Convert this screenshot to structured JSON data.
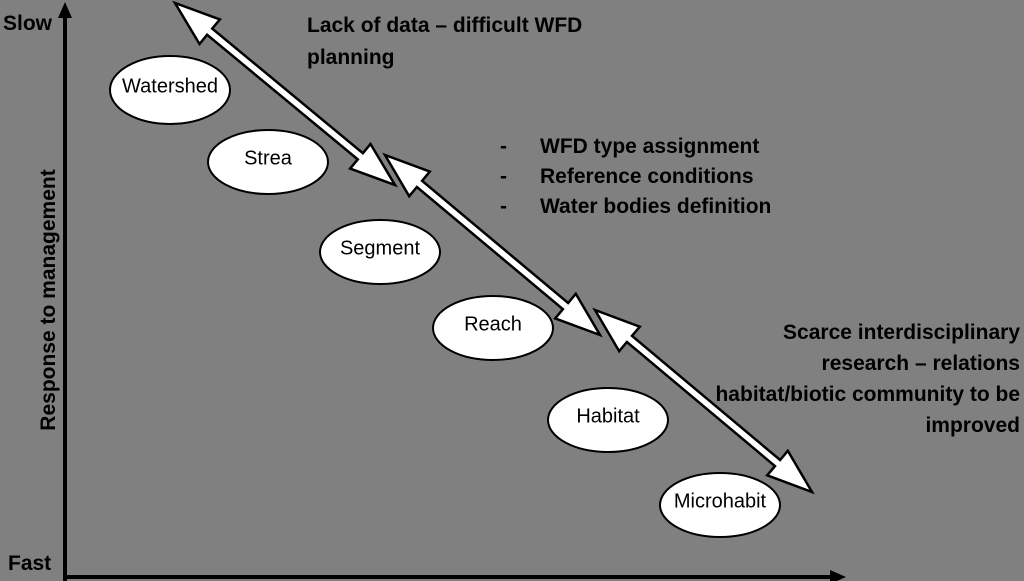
{
  "axis": {
    "top_label": "Slow",
    "bottom_label": "Fast",
    "y_label": "Response to management"
  },
  "nodes": [
    {
      "label": "Watershed"
    },
    {
      "label": "Strea"
    },
    {
      "label": "Segment"
    },
    {
      "label": "Reach"
    },
    {
      "label": "Habitat"
    },
    {
      "label": "Microhabit"
    }
  ],
  "notes": {
    "top": [
      "Lack of data – difficult WFD",
      "planning"
    ],
    "middle": [
      {
        "bullet": "-",
        "text": "WFD type assignment"
      },
      {
        "bullet": "-",
        "text": "Reference conditions"
      },
      {
        "bullet": "-",
        "text": "Water bodies definition"
      }
    ],
    "bottom": [
      "Scarce interdisciplinary",
      "research  – relations",
      "habitat/biotic community to be",
      "improved"
    ]
  }
}
